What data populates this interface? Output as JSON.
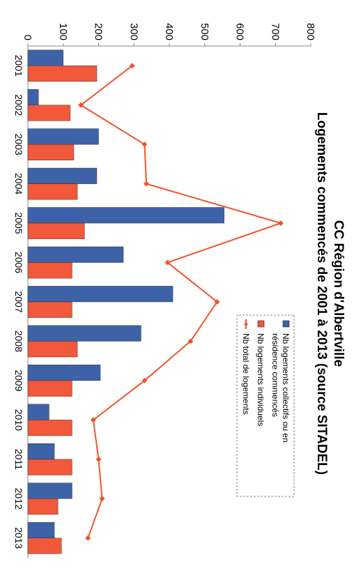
{
  "chart_data": {
    "type": "bar",
    "title": "CC Région d'Albertville",
    "subtitle": "Logements commencés de 2001 à 2013 (source SITADEL)",
    "categories": [
      "2001",
      "2002",
      "2003",
      "2004",
      "2005",
      "2006",
      "2007",
      "2008",
      "2009",
      "2010",
      "2011",
      "2012",
      "2013"
    ],
    "ylim": [
      0,
      800
    ],
    "yticks": [
      "0",
      "100",
      "200",
      "300",
      "400",
      "500",
      "600",
      "700",
      "800"
    ],
    "series": [
      {
        "name": "Nb logements collectifs ou en résidence commencés",
        "kind": "bar",
        "color": "#3e62a8",
        "values": [
          100,
          30,
          200,
          195,
          555,
          270,
          410,
          320,
          205,
          60,
          75,
          125,
          75
        ]
      },
      {
        "name": "Nb logements individuels",
        "kind": "bar",
        "color": "#f2583a",
        "values": [
          195,
          120,
          130,
          140,
          160,
          125,
          125,
          140,
          125,
          125,
          125,
          85,
          95
        ]
      },
      {
        "name": "Nb total de logements",
        "kind": "line",
        "color": "#f0542a",
        "values": [
          295,
          150,
          330,
          335,
          715,
          395,
          535,
          460,
          330,
          185,
          200,
          210,
          170
        ]
      }
    ],
    "legend": {
      "position": "top-right",
      "entries": [
        {
          "lines": [
            "Nb logements collectifs ou en",
            "résidence commencés"
          ]
        },
        {
          "lines": [
            "Nb logements individuels"
          ]
        },
        {
          "lines": [
            "Nb total de logements"
          ]
        }
      ]
    },
    "grid": false
  }
}
